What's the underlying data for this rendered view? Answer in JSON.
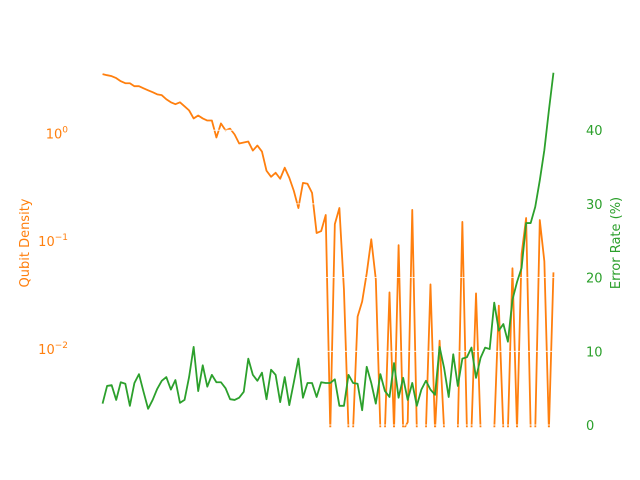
{
  "chart_data": {
    "type": "line",
    "title": "",
    "xlabel": "",
    "x": [
      0,
      1,
      2,
      3,
      4,
      5,
      6,
      7,
      8,
      9,
      10,
      11,
      12,
      13,
      14,
      15,
      16,
      17,
      18,
      19,
      20,
      21,
      22,
      23,
      24,
      25,
      26,
      27,
      28,
      29,
      30,
      31,
      32,
      33,
      34,
      35,
      36,
      37,
      38,
      39,
      40,
      41,
      42,
      43,
      44,
      45,
      46,
      47,
      48,
      49,
      50,
      51,
      52,
      53,
      54,
      55,
      56,
      57,
      58,
      59,
      60,
      61,
      62,
      63,
      64,
      65,
      66,
      67,
      68,
      69,
      70,
      71,
      72,
      73,
      74,
      75,
      76,
      77,
      78,
      79,
      80,
      81,
      82,
      83,
      84,
      85,
      86,
      87,
      88,
      89,
      90,
      91,
      92,
      93,
      94,
      95,
      96,
      97,
      98,
      99
    ],
    "xlim": [
      -4.95,
      103.95
    ],
    "grid": "horizontal, white, on right axis",
    "series": [
      {
        "name": "Qubit Density",
        "axis": "left",
        "scale": "log",
        "color": "#ff7f0e",
        "values": [
          3.56,
          3.48,
          3.41,
          3.27,
          3.06,
          2.93,
          2.93,
          2.75,
          2.75,
          2.63,
          2.52,
          2.42,
          2.31,
          2.27,
          2.08,
          1.95,
          1.87,
          1.95,
          1.79,
          1.64,
          1.38,
          1.47,
          1.38,
          1.32,
          1.32,
          0.918,
          1.24,
          1.07,
          1.11,
          0.979,
          0.807,
          0.824,
          0.842,
          0.694,
          0.773,
          0.679,
          0.451,
          0.396,
          0.432,
          0.38,
          0.481,
          0.388,
          0.293,
          0.203,
          0.348,
          0.341,
          0.281,
          0.119,
          0.124,
          0.175,
          0,
          0.144,
          0.203,
          0.0356,
          0,
          0,
          0.0199,
          0.0275,
          0.0502,
          0.104,
          0.0441,
          0,
          0,
          0.0334,
          0,
          0.0918,
          0,
          0.00208,
          0.195,
          0,
          0,
          0,
          0.0397,
          0,
          0.0119,
          0,
          0,
          0,
          0,
          0.151,
          0,
          0,
          0.0327,
          0,
          0,
          0,
          0,
          0.0252,
          0,
          0,
          0.056,
          0,
          0.0756,
          0.164,
          0,
          0,
          0.157,
          0.065,
          0,
          0.0513
        ]
      },
      {
        "name": "Error Rate (%)",
        "axis": "right",
        "scale": "linear",
        "color": "#2ca02c",
        "values": [
          2.9,
          5.3,
          5.4,
          3.4,
          5.8,
          5.6,
          2.6,
          5.7,
          6.9,
          4.5,
          2.2,
          3.4,
          4.9,
          6.0,
          6.5,
          4.8,
          6.1,
          3.0,
          3.4,
          6.5,
          10.6,
          4.6,
          8.1,
          5.2,
          6.8,
          5.8,
          5.8,
          5.0,
          3.5,
          3.4,
          3.7,
          4.5,
          9.0,
          6.8,
          6.0,
          7.1,
          3.5,
          7.5,
          6.8,
          3.1,
          6.5,
          2.7,
          5.8,
          9.0,
          3.7,
          5.7,
          5.7,
          3.8,
          5.8,
          5.7,
          5.7,
          6.2,
          2.6,
          2.6,
          6.8,
          5.7,
          5.6,
          2.0,
          7.9,
          5.7,
          2.9,
          6.9,
          4.6,
          3.8,
          8.4,
          3.7,
          6.4,
          3.4,
          5.7,
          2.6,
          4.8,
          6.0,
          4.8,
          4.1,
          10.6,
          7.7,
          3.8,
          9.6,
          5.3,
          9.0,
          9.2,
          10.5,
          6.4,
          9.1,
          10.5,
          10.3,
          16.6,
          12.8,
          13.7,
          11.3,
          17.0,
          19.4,
          21.3,
          27.4,
          27.4,
          29.6,
          33.2,
          37.3,
          42.7,
          47.8
        ]
      }
    ],
    "left_axis": {
      "label": "Qubit Density",
      "scale": "log",
      "ylim": [
        0.00187,
        5.07
      ],
      "ticks": [
        {
          "value": 1,
          "base": "10",
          "exp": "0"
        },
        {
          "value": 0.1,
          "base": "10",
          "exp": "−1"
        },
        {
          "value": 0.01,
          "base": "10",
          "exp": "−2"
        }
      ]
    },
    "right_axis": {
      "label": "Error Rate (%)",
      "scale": "linear",
      "ylim": [
        -0.3,
        49.85
      ],
      "ticks": [
        {
          "value": 0,
          "label": "0"
        },
        {
          "value": 10,
          "label": "10"
        },
        {
          "value": 20,
          "label": "20"
        },
        {
          "value": 30,
          "label": "30"
        },
        {
          "value": 40,
          "label": "40"
        }
      ]
    }
  }
}
